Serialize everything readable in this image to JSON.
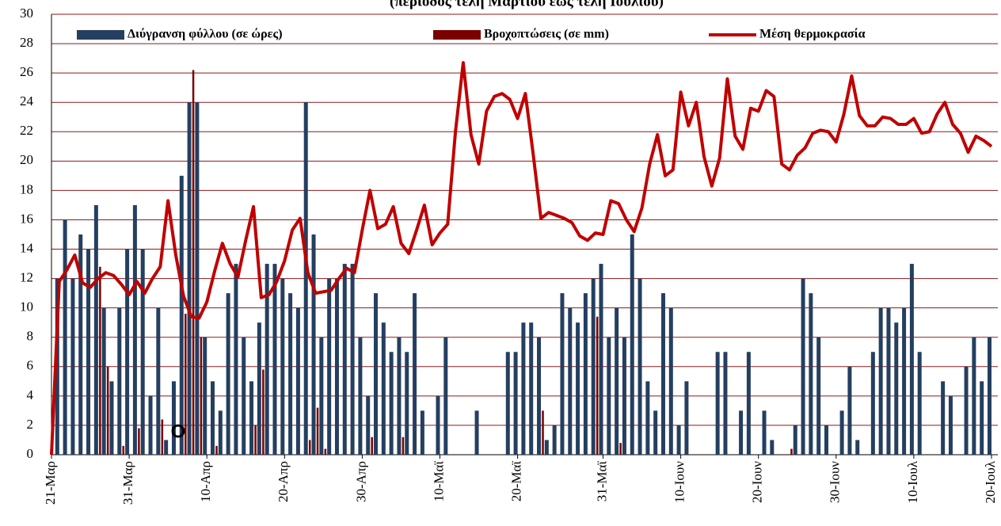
{
  "chart_data": {
    "type": "bar",
    "title": "(περίοδος τέλη Μαρτίου έως τέλη Ιουλίου)",
    "annotation": "O",
    "categories": [
      "21-Μαρ",
      null,
      null,
      null,
      null,
      null,
      null,
      null,
      null,
      null,
      "31-Μαρ",
      null,
      null,
      null,
      null,
      null,
      null,
      null,
      null,
      null,
      "10-Απρ",
      null,
      null,
      null,
      null,
      null,
      null,
      null,
      null,
      null,
      "20-Απρ",
      null,
      null,
      null,
      null,
      null,
      null,
      null,
      null,
      null,
      "30-Απρ",
      null,
      null,
      null,
      null,
      null,
      null,
      null,
      null,
      null,
      "10-Μαϊ",
      null,
      null,
      null,
      null,
      null,
      null,
      null,
      null,
      null,
      "20-Μαϊ",
      null,
      null,
      null,
      null,
      null,
      null,
      null,
      null,
      null,
      null,
      "31-Μαϊ",
      null,
      null,
      null,
      null,
      null,
      null,
      null,
      null,
      null,
      "10-Ιουν",
      null,
      null,
      null,
      null,
      null,
      null,
      null,
      null,
      null,
      "20-Ιουν",
      null,
      null,
      null,
      null,
      null,
      null,
      null,
      null,
      null,
      "30-Ιουν",
      null,
      null,
      null,
      null,
      null,
      null,
      null,
      null,
      null,
      "10-Ιουλ",
      null,
      null,
      null,
      null,
      null,
      null,
      null,
      null,
      null,
      "20-Ιουλ"
    ],
    "series": [
      {
        "name": "Διύγρανση φύλλου (σε ώρες)",
        "type": "bar",
        "color": "#243f60",
        "values": [
          0,
          12,
          16,
          12,
          15,
          14,
          17,
          10,
          5,
          10,
          14,
          17,
          14,
          4,
          10,
          1,
          5,
          19,
          24,
          24,
          8,
          5,
          3,
          11,
          13,
          8,
          5,
          9,
          13,
          13,
          12,
          11,
          10,
          24,
          15,
          8,
          12,
          12,
          13,
          13,
          8,
          4,
          11,
          9,
          7,
          8,
          7,
          11,
          3,
          0,
          4,
          8,
          0,
          0,
          0,
          3,
          0,
          0,
          0,
          7,
          7,
          9,
          9,
          8,
          1,
          2,
          11,
          10,
          9,
          11,
          12,
          13,
          8,
          10,
          8,
          15,
          12,
          5,
          3,
          11,
          10,
          2,
          5,
          0,
          0,
          0,
          7,
          7,
          0,
          3,
          7,
          0,
          3,
          1,
          0,
          0,
          2,
          12,
          11,
          8,
          2,
          0,
          3,
          6,
          1,
          0,
          7,
          10,
          10,
          9,
          10,
          13,
          7,
          0,
          0,
          5,
          4,
          0,
          6,
          8,
          5,
          8
        ]
      },
      {
        "name": "Βροχοπτώσεις (σε mm)",
        "type": "bar",
        "color": "#7b0000",
        "values": [
          0,
          0,
          0,
          0,
          0,
          0,
          12.8,
          6,
          0,
          0.6,
          0,
          1.8,
          0,
          0,
          2.4,
          0,
          0,
          9.6,
          26.2,
          8,
          0,
          0.6,
          0,
          0,
          0,
          0,
          2,
          5.8,
          0,
          0,
          0,
          0,
          0,
          1,
          3.2,
          0.4,
          0,
          0,
          0,
          0,
          0,
          1.2,
          0,
          0,
          0,
          1.2,
          0,
          0,
          0,
          0,
          0,
          0,
          0,
          0,
          0,
          0,
          0,
          0,
          0,
          0,
          0,
          0,
          0,
          3,
          0,
          0,
          0,
          0,
          0,
          0,
          9.4,
          0,
          0,
          0.8,
          0,
          0,
          0,
          0,
          0,
          0,
          0,
          0,
          0,
          0,
          0,
          0,
          0,
          0,
          0,
          0,
          0,
          0,
          0,
          0,
          0,
          0.4,
          0,
          0,
          0,
          0,
          0,
          0,
          0,
          0,
          0,
          0,
          0,
          0,
          0,
          0,
          0,
          0,
          0,
          0,
          0,
          0,
          0,
          0,
          0,
          0,
          0,
          0
        ]
      },
      {
        "name": "Μέση θερμοκρασία",
        "type": "line",
        "color": "#c00000",
        "values": [
          0,
          11.8,
          12.6,
          13.6,
          11.7,
          11.4,
          12.0,
          12.4,
          12.2,
          11.6,
          10.9,
          11.8,
          11.0,
          12.0,
          12.8,
          17.3,
          13.6,
          10.8,
          9.4,
          9.3,
          10.4,
          12.5,
          14.4,
          13.0,
          12.1,
          14.6,
          16.9,
          10.7,
          10.9,
          11.8,
          13.2,
          15.3,
          16.1,
          12.4,
          11.0,
          11.1,
          11.2,
          12.0,
          12.7,
          12.4,
          15.3,
          18.0,
          15.4,
          15.7,
          16.9,
          14.4,
          13.7,
          15.3,
          17.0,
          14.3,
          15.1,
          15.7,
          22.0,
          26.7,
          21.8,
          19.8,
          23.4,
          24.4,
          24.6,
          24.2,
          22.9,
          24.6,
          20.5,
          16.1,
          16.5,
          16.3,
          16.1,
          15.8,
          14.9,
          14.6,
          15.1,
          15.0,
          17.3,
          17.1,
          16.0,
          15.2,
          16.8,
          19.8,
          21.8,
          19.0,
          19.4,
          24.7,
          22.4,
          24.0,
          20.3,
          18.3,
          20.2,
          25.6,
          21.7,
          20.8,
          23.6,
          23.4,
          24.8,
          24.4,
          19.8,
          19.4,
          20.4,
          20.9,
          21.9,
          22.1,
          22.0,
          21.3,
          23.2,
          25.8,
          23.1,
          22.4,
          22.4,
          23.0,
          22.9,
          22.5,
          22.5,
          22.9,
          21.9,
          22.0,
          23.2,
          24.0,
          22.5,
          21.9,
          20.6,
          21.7,
          21.4,
          21.0
        ]
      }
    ],
    "ylim": [
      0,
      30
    ],
    "yticks": [
      0,
      2,
      4,
      6,
      8,
      10,
      12,
      14,
      16,
      18,
      20,
      22,
      24,
      26,
      28,
      30
    ],
    "grid": true,
    "grid_color": "#8b1a1a",
    "legend": "top"
  }
}
